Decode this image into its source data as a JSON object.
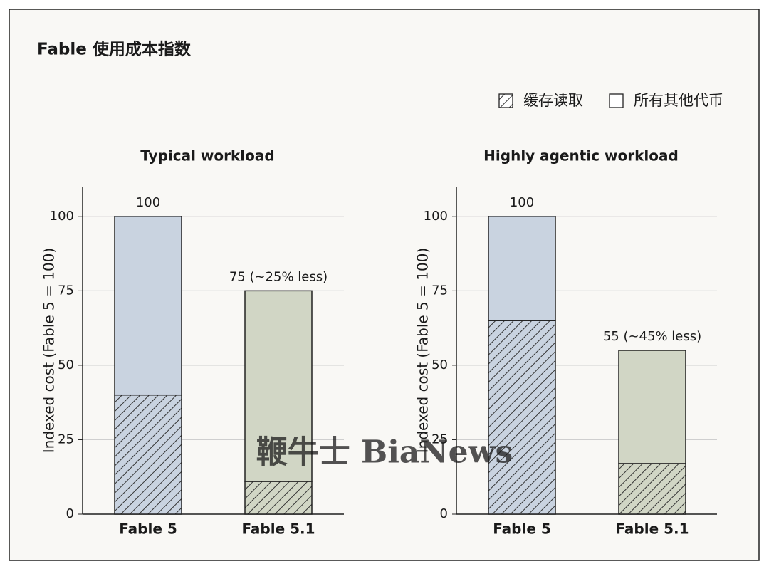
{
  "title": "Fable 使用成本指数",
  "watermark": "鞭牛士 BiaNews",
  "chart_data": [
    {
      "type": "bar",
      "stacked": true,
      "title": "Typical workload",
      "ylabel": "Indexed cost (Fable 5 = 100)",
      "categories": [
        "Fable 5",
        "Fable 5.1"
      ],
      "colors": [
        "#c9d3e0",
        "#d1d6c5"
      ],
      "series": [
        {
          "name": "缓存读取",
          "hatch": true,
          "values": [
            40,
            11
          ]
        },
        {
          "name": "所有其他代币",
          "hatch": false,
          "values": [
            60,
            64
          ]
        }
      ],
      "totals": {
        "values": [
          100,
          75
        ],
        "value_labels": [
          "100",
          "75 (~25% less)"
        ]
      },
      "ylim": [
        0,
        110
      ],
      "yticks": [
        0,
        25,
        50,
        75,
        100
      ],
      "grid": true
    },
    {
      "type": "bar",
      "stacked": true,
      "title": "Highly agentic workload",
      "ylabel": "Indexed cost (Fable 5 = 100)",
      "categories": [
        "Fable 5",
        "Fable 5.1"
      ],
      "colors": [
        "#c9d3e0",
        "#d1d6c5"
      ],
      "series": [
        {
          "name": "缓存读取",
          "hatch": true,
          "values": [
            65,
            17
          ]
        },
        {
          "name": "所有其他代币",
          "hatch": false,
          "values": [
            35,
            38
          ]
        }
      ],
      "totals": {
        "values": [
          100,
          55
        ],
        "value_labels": [
          "100",
          "55 (~45% less)"
        ]
      },
      "ylim": [
        0,
        110
      ],
      "yticks": [
        0,
        25,
        50,
        75,
        100
      ],
      "grid": true
    }
  ]
}
